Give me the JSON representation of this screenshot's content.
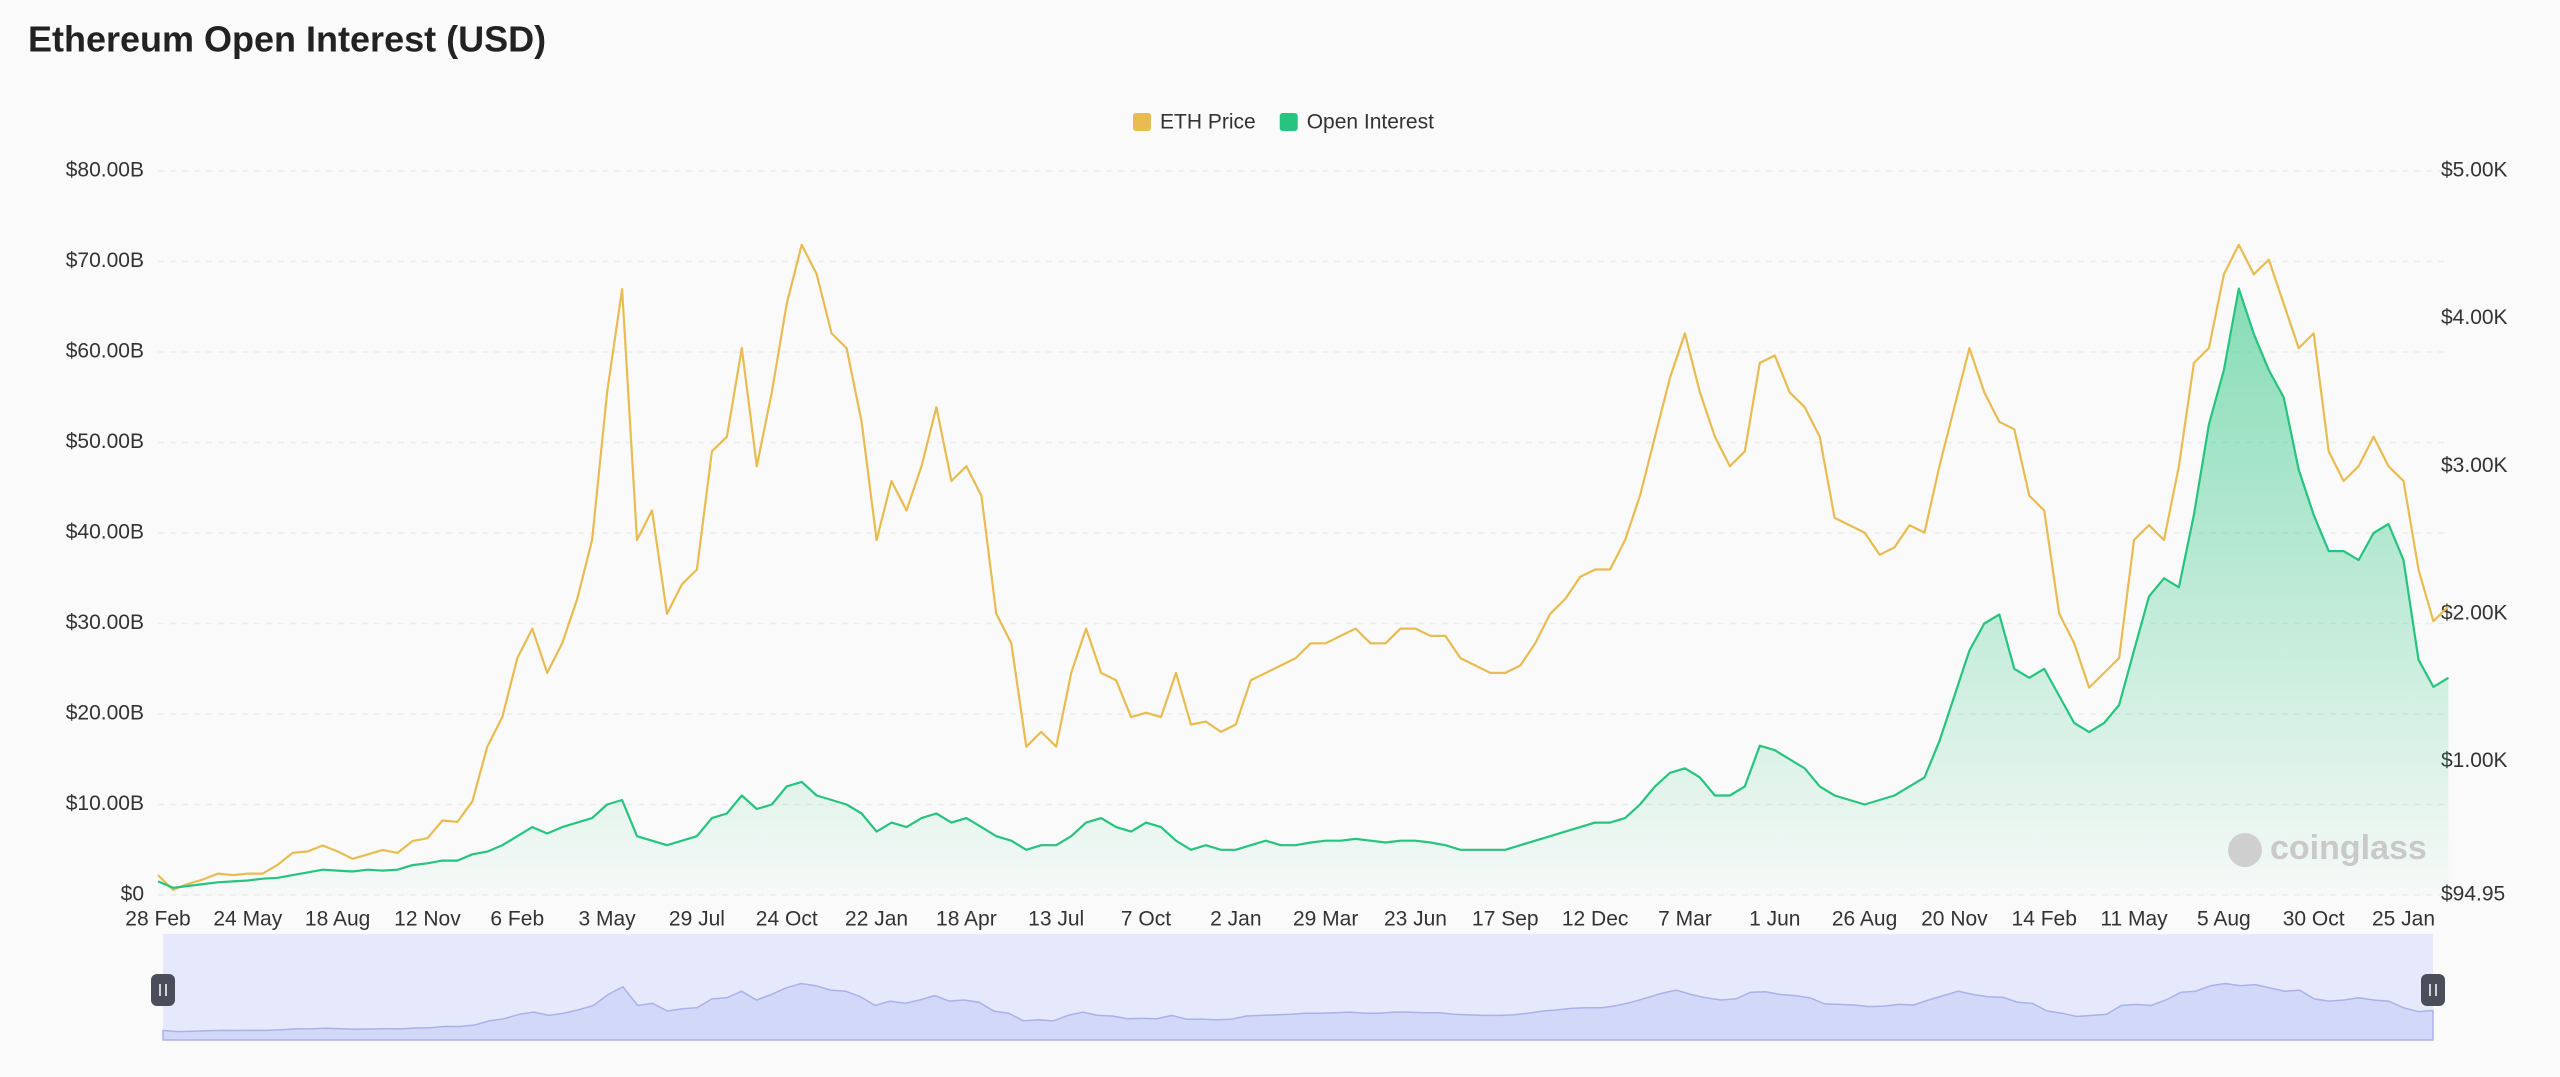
{
  "chart_data": {
    "type": "line",
    "title": "Ethereum Open Interest (USD)",
    "watermark": "coinglass",
    "categories": [
      "28 Feb",
      null,
      null,
      null,
      null,
      null,
      "24 May",
      null,
      null,
      null,
      null,
      null,
      "18 Aug",
      null,
      null,
      null,
      null,
      null,
      "12 Nov",
      null,
      null,
      null,
      null,
      null,
      "6 Feb",
      null,
      null,
      null,
      null,
      null,
      "3 May",
      null,
      null,
      null,
      null,
      null,
      "29 Jul",
      null,
      null,
      null,
      null,
      null,
      "24 Oct",
      null,
      null,
      null,
      null,
      null,
      "22 Jan",
      null,
      null,
      null,
      null,
      null,
      "18 Apr",
      null,
      null,
      null,
      null,
      null,
      "13 Jul",
      null,
      null,
      null,
      null,
      null,
      "7 Oct",
      null,
      null,
      null,
      null,
      null,
      "2 Jan",
      null,
      null,
      null,
      null,
      null,
      "29 Mar",
      null,
      null,
      null,
      null,
      null,
      "23 Jun",
      null,
      null,
      null,
      null,
      null,
      "17 Sep",
      null,
      null,
      null,
      null,
      null,
      "12 Dec",
      null,
      null,
      null,
      null,
      null,
      "7 Mar",
      null,
      null,
      null,
      null,
      null,
      "1 Jun",
      null,
      null,
      null,
      null,
      null,
      "26 Aug",
      null,
      null,
      null,
      null,
      null,
      "20 Nov",
      null,
      null,
      null,
      null,
      null,
      "14 Feb",
      null,
      null,
      null,
      null,
      null,
      "11 May",
      null,
      null,
      null,
      null,
      null,
      "5 Aug",
      null,
      null,
      null,
      null,
      null,
      "30 Oct",
      null,
      null,
      null,
      null,
      null,
      "25 Jan",
      null,
      null,
      null
    ],
    "series": [
      {
        "name": "ETH Price",
        "color": "#e9bc52",
        "axis": "y2",
        "values": [
          230,
          130,
          170,
          200,
          240,
          230,
          240,
          240,
          300,
          380,
          390,
          430,
          390,
          340,
          370,
          400,
          380,
          460,
          480,
          600,
          590,
          730,
          1100,
          1300,
          1700,
          1900,
          1600,
          1800,
          2100,
          2500,
          3500,
          4200,
          2500,
          2700,
          2000,
          2200,
          2300,
          3100,
          3200,
          3800,
          3000,
          3500,
          4100,
          4500,
          4300,
          3900,
          3800,
          3300,
          2500,
          2900,
          2700,
          3000,
          3400,
          2900,
          3000,
          2800,
          2000,
          1800,
          1100,
          1200,
          1100,
          1600,
          1900,
          1600,
          1550,
          1300,
          1330,
          1300,
          1600,
          1250,
          1270,
          1200,
          1250,
          1550,
          1600,
          1650,
          1700,
          1800,
          1800,
          1850,
          1900,
          1800,
          1800,
          1900,
          1900,
          1850,
          1850,
          1700,
          1650,
          1600,
          1600,
          1650,
          1800,
          2000,
          2100,
          2250,
          2300,
          2300,
          2500,
          2800,
          3200,
          3600,
          3900,
          3500,
          3200,
          3000,
          3100,
          3700,
          3750,
          3500,
          3400,
          3200,
          2650,
          2600,
          2550,
          2400,
          2450,
          2600,
          2550,
          3000,
          3400,
          3800,
          3500,
          3300,
          3250,
          2800,
          2700,
          2000,
          1800,
          1500,
          1600,
          1700,
          2500,
          2600,
          2500,
          3000,
          3700,
          3800,
          4300,
          4500,
          4300,
          4400,
          4100,
          3800,
          3900,
          3100,
          2900,
          3000,
          3200,
          3000,
          2900,
          2300,
          1950,
          2050
        ]
      },
      {
        "name": "Open Interest",
        "color": "#26c47e",
        "area": true,
        "values": [
          1.5,
          0.8,
          1.0,
          1.2,
          1.4,
          1.5,
          1.6,
          1.8,
          1.9,
          2.2,
          2.5,
          2.8,
          2.7,
          2.6,
          2.8,
          2.7,
          2.8,
          3.3,
          3.5,
          3.8,
          3.8,
          4.5,
          4.8,
          5.5,
          6.5,
          7.5,
          6.8,
          7.5,
          8,
          8.5,
          10,
          10.5,
          6.5,
          6,
          5.5,
          6,
          6.5,
          8.5,
          9,
          11,
          9.5,
          10,
          12,
          12.5,
          11,
          10.5,
          10,
          9,
          7,
          8,
          7.5,
          8.5,
          9,
          8,
          8.5,
          7.5,
          6.5,
          6,
          5,
          5.5,
          5.5,
          6.5,
          8,
          8.5,
          7.5,
          7,
          8,
          7.5,
          6,
          5,
          5.5,
          5,
          5,
          5.5,
          6,
          5.5,
          5.5,
          5.8,
          6,
          6,
          6.2,
          6,
          5.8,
          6,
          6,
          5.8,
          5.5,
          5,
          5,
          5,
          5,
          5.5,
          6,
          6.5,
          7,
          7.5,
          8,
          8,
          8.5,
          10,
          12,
          13.5,
          14,
          13,
          11,
          11,
          12,
          16.5,
          16,
          15,
          14,
          12,
          11,
          10.5,
          10,
          10.5,
          11,
          12,
          13,
          17,
          22,
          27,
          30,
          31,
          25,
          24,
          25,
          22,
          19,
          18,
          19,
          21,
          27,
          33,
          35,
          34,
          42,
          52,
          58,
          67,
          62,
          58,
          55,
          47,
          42,
          38,
          38,
          37,
          40,
          41,
          37,
          26,
          23,
          24
        ]
      }
    ],
    "ylim": [
      0,
      80
    ],
    "yticks": [
      {
        "value": 0,
        "label": "$0"
      },
      {
        "value": 10,
        "label": "$10.00B"
      },
      {
        "value": 20,
        "label": "$20.00B"
      },
      {
        "value": 30,
        "label": "$30.00B"
      },
      {
        "value": 40,
        "label": "$40.00B"
      },
      {
        "value": 50,
        "label": "$50.00B"
      },
      {
        "value": 60,
        "label": "$60.00B"
      },
      {
        "value": 70,
        "label": "$70.00B"
      },
      {
        "value": 80,
        "label": "$80.00B"
      }
    ],
    "y2lim": [
      94.95,
      5000
    ],
    "y2ticks": [
      {
        "value": 94.95,
        "label": "$94.95"
      },
      {
        "value": 1000,
        "label": "$1.00K"
      },
      {
        "value": 2000,
        "label": "$2.00K"
      },
      {
        "value": 3000,
        "label": "$3.00K"
      },
      {
        "value": 4000,
        "label": "$4.00K"
      },
      {
        "value": 5000,
        "label": "$5.00K"
      }
    ],
    "grid": true,
    "legend": "top"
  }
}
